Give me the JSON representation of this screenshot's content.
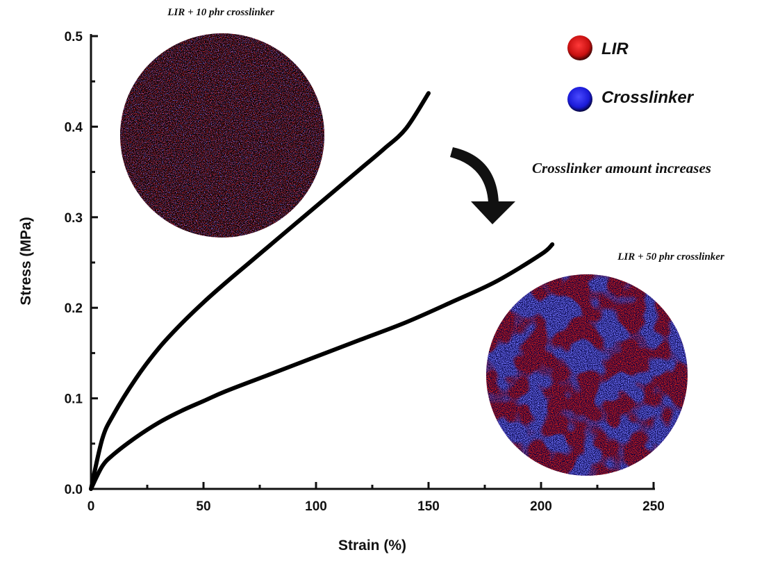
{
  "chart_data": {
    "type": "line",
    "xlabel": "Strain (%)",
    "ylabel": "Stress (MPa)",
    "xlim": [
      0,
      250
    ],
    "ylim": [
      0,
      0.5
    ],
    "x_ticks": [
      "0",
      "50",
      "100",
      "150",
      "200",
      "250"
    ],
    "y_ticks": [
      "0.0",
      "0.1",
      "0.2",
      "0.3",
      "0.4",
      "0.5"
    ],
    "grid": false,
    "series": [
      {
        "label": "LIR + 10 phr crosslinker",
        "color": "#000000",
        "x": [
          0,
          5,
          10,
          20,
          30,
          40,
          50,
          60,
          70,
          80,
          90,
          100,
          110,
          120,
          130,
          140,
          150
        ],
        "y": [
          0.0,
          0.055,
          0.082,
          0.122,
          0.155,
          0.182,
          0.206,
          0.228,
          0.249,
          0.27,
          0.291,
          0.312,
          0.333,
          0.354,
          0.375,
          0.398,
          0.437
        ]
      },
      {
        "label": "LIR + 50 phr crosslinker",
        "color": "#000000",
        "x": [
          0,
          5,
          10,
          20,
          30,
          40,
          50,
          60,
          80,
          100,
          120,
          140,
          160,
          180,
          200,
          205
        ],
        "y": [
          0.0,
          0.025,
          0.038,
          0.057,
          0.073,
          0.086,
          0.097,
          0.108,
          0.127,
          0.146,
          0.165,
          0.184,
          0.206,
          0.229,
          0.259,
          0.27
        ]
      }
    ],
    "annotations": {
      "top_image_label": "LIR + 10 phr crosslinker",
      "bottom_image_label": "LIR + 50 phr crosslinker",
      "arrow_label": "Crosslinker amount increases"
    },
    "legend": {
      "placement": "top-right",
      "items": [
        {
          "label": "LIR",
          "color": "#e02020"
        },
        {
          "label": "Crosslinker",
          "color": "#2a2ae6"
        }
      ]
    }
  },
  "colors": {
    "red_phase": "#d81e1e",
    "blue_phase": "#2c2cff",
    "dark_phase": "#0a0510"
  }
}
